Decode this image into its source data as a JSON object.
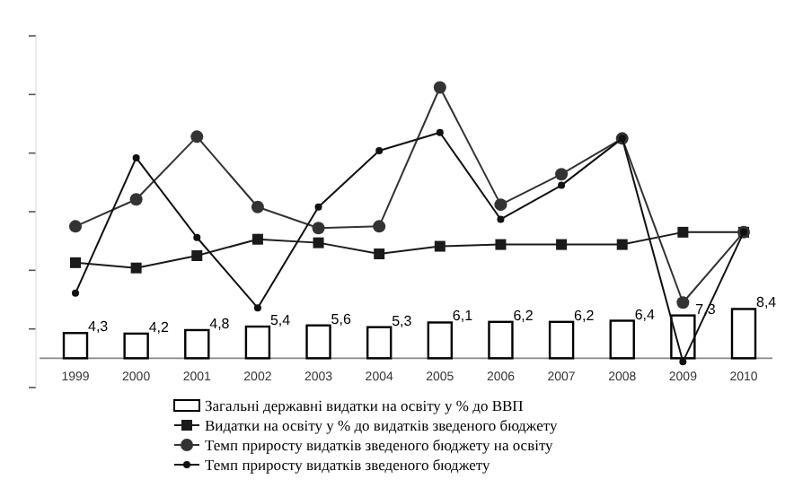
{
  "chart_data": {
    "type": "bar",
    "categories": [
      "1999",
      "2000",
      "2001",
      "2002",
      "2003",
      "2004",
      "2005",
      "2006",
      "2007",
      "2008",
      "2009",
      "2010"
    ],
    "ylim": [
      -5,
      55
    ],
    "yticks": [
      {
        "value": -5,
        "label": null
      },
      {
        "value": 5,
        "label": null
      },
      {
        "value": 15,
        "label": null
      },
      {
        "value": 25,
        "label": null
      },
      {
        "value": 35,
        "label": null
      },
      {
        "value": 45,
        "label": null
      },
      {
        "value": 55,
        "label": null
      }
    ],
    "tick_labels": "x",
    "grid": false,
    "legend": "bottom",
    "series": [
      {
        "name": "Загальні державні видатки на освіту у % до ВВП",
        "color": "#ffffff",
        "values": [
          4.3,
          4.2,
          4.8,
          5.4,
          5.6,
          5.3,
          6.1,
          6.2,
          6.2,
          6.4,
          7.3,
          8.4
        ],
        "value_labels": [
          "4,3",
          "4,2",
          "4,8",
          "5,4",
          "5,6",
          "5,3",
          "6,1",
          "6,2",
          "6,2",
          "6,4",
          "7,3",
          "8,4"
        ]
      },
      {
        "name": "Видатки на освіту у % до видатків зведеного бюджету",
        "type": "line",
        "marker": "square",
        "color": "#1a1a1a",
        "values": [
          16.3,
          15.4,
          17.5,
          20.3,
          19.7,
          17.8,
          19.1,
          19.4,
          19.4,
          19.4,
          21.5,
          21.5
        ]
      },
      {
        "name": "Темп приросту видатків зведеного бюджету на освіту",
        "type": "line",
        "marker": "circle",
        "color": "#333333",
        "values": [
          22.5,
          27.1,
          37.8,
          25.8,
          22.2,
          22.5,
          46.2,
          26.2,
          31.4,
          37.5,
          9.5,
          21.5
        ]
      },
      {
        "name": "Темп приросту видатків зведеного бюджету",
        "type": "line",
        "marker": "circle",
        "color": "#111111",
        "values": [
          11.1,
          34.2,
          20.6,
          8.6,
          25.8,
          35.4,
          38.5,
          23.7,
          29.5,
          37.5,
          -0.6,
          21.5
        ]
      }
    ]
  }
}
